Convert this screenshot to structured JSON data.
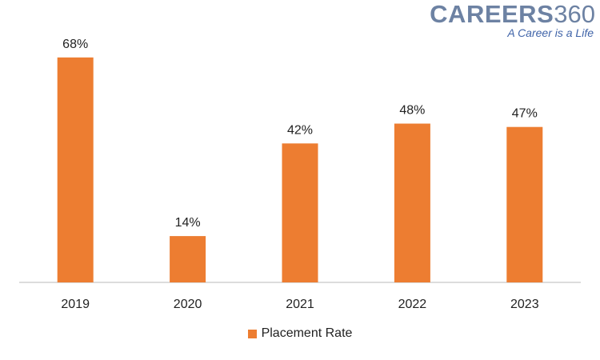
{
  "logo": {
    "word": "CAREERS",
    "number": "360",
    "tagline": "A Career is a Life"
  },
  "chart_data": {
    "type": "bar",
    "categories": [
      "2019",
      "2020",
      "2021",
      "2022",
      "2023"
    ],
    "series": [
      {
        "name": "Placement Rate",
        "values": [
          68,
          14,
          42,
          48,
          47
        ],
        "color": "#ed7d31"
      }
    ],
    "data_labels": [
      "68%",
      "14%",
      "42%",
      "48%",
      "47%"
    ],
    "value_unit": "%",
    "ylim": [
      0,
      70
    ],
    "grid": false,
    "y_axis_visible": false,
    "legend_position": "bottom",
    "title": "",
    "xlabel": "",
    "ylabel": ""
  }
}
